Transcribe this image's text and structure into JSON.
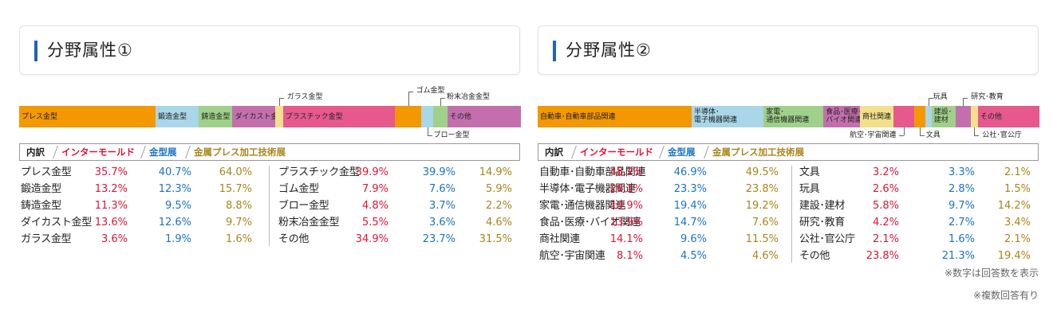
{
  "panel1": {
    "title": "分野属性①",
    "bar_segments": [
      {
        "label": "プレス金型",
        "share": 35.7,
        "color": "#f39800"
      },
      {
        "label": "鍛造金型",
        "share": 11.3,
        "color": "#a9d6e8"
      },
      {
        "label": "鋳造金型",
        "share": 8.8,
        "color": "#9fd18a"
      },
      {
        "label": "ダイカスト金型",
        "share": 11.1,
        "color": "#c36fae"
      },
      {
        "label": "ガラス金型",
        "share": 2.1,
        "color": "#f2e08a"
      },
      {
        "label": "プラスチック金型",
        "share": 29.3,
        "color": "#e7588f"
      },
      {
        "label": "ゴム金型",
        "share": 6.8,
        "color": "#f39800"
      },
      {
        "label": "ブロー金型",
        "share": 3.2,
        "color": "#a9d6e8"
      },
      {
        "label": "粉末冶金金型",
        "share": 3.7,
        "color": "#9fd18a"
      },
      {
        "label": "その他",
        "share": 19.0,
        "color": "#c36fae"
      }
    ],
    "header": {
      "k": "内訳",
      "i": "インターモールド",
      "m": "金型展",
      "p": "金属プレス加工技術展"
    },
    "rows_left": [
      {
        "name": "プレス金型",
        "i": "35.7%",
        "m": "40.7%",
        "p": "64.0%"
      },
      {
        "name": "鍛造金型",
        "i": "13.2%",
        "m": "12.3%",
        "p": "15.7%"
      },
      {
        "name": "鋳造金型",
        "i": "11.3%",
        "m": "9.5%",
        "p": "8.8%"
      },
      {
        "name": "ダイカスト金型",
        "i": "13.6%",
        "m": "12.6%",
        "p": "9.7%"
      },
      {
        "name": "ガラス金型",
        "i": "3.6%",
        "m": "1.9%",
        "p": "1.6%"
      }
    ],
    "rows_right": [
      {
        "name": "プラスチック金型",
        "i": "39.9%",
        "m": "39.9%",
        "p": "14.9%"
      },
      {
        "name": "ゴム金型",
        "i": "7.9%",
        "m": "7.6%",
        "p": "5.9%"
      },
      {
        "name": "ブロー金型",
        "i": "4.8%",
        "m": "3.7%",
        "p": "2.2%"
      },
      {
        "name": "粉末冶金金型",
        "i": "5.5%",
        "m": "3.6%",
        "p": "4.6%"
      },
      {
        "name": "その他",
        "i": "34.9%",
        "m": "23.7%",
        "p": "31.5%"
      }
    ]
  },
  "panel2": {
    "title": "分野属性②",
    "bar_segments": [
      {
        "label": "自動車･自動車部品関連",
        "share": 34.2,
        "color": "#f39800"
      },
      {
        "label": "半導体･\n電子機器関連",
        "share": 16.0,
        "color": "#a9d6e8"
      },
      {
        "label": "家電･\n通信機器関連",
        "share": 13.3,
        "color": "#9fd18a"
      },
      {
        "label": "食品･医療･\nバイオ関連",
        "share": 8.1,
        "color": "#c36fae"
      },
      {
        "label": "商社関連",
        "share": 7.5,
        "color": "#f2e08a"
      },
      {
        "label": "航空･宇宙関連",
        "share": 4.5,
        "color": "#e7588f"
      },
      {
        "label": "文具",
        "share": 2.5,
        "color": "#f39800"
      },
      {
        "label": "玩具",
        "share": 1.4,
        "color": "#a9d6e8"
      },
      {
        "label": "建設･\n建材",
        "share": 5.3,
        "color": "#9fd18a"
      },
      {
        "label": "研究･教育",
        "share": 3.4,
        "color": "#c36fae"
      },
      {
        "label": "公社･官公庁",
        "share": 1.6,
        "color": "#f2e08a"
      },
      {
        "label": "その他",
        "share": 13.5,
        "color": "#e7588f"
      }
    ],
    "header": {
      "k": "内訳",
      "i": "インターモールド",
      "m": "金型展",
      "p": "金属プレス加工技術展"
    },
    "rows_left": [
      {
        "name": "自動車･自動車部品関連",
        "i": "48.2%",
        "m": "46.9%",
        "p": "49.5%"
      },
      {
        "name": "半導体･電子機器関連",
        "i": "26.1%",
        "m": "23.3%",
        "p": "23.8%"
      },
      {
        "name": "家電･通信機器関連",
        "i": "19.9%",
        "m": "19.4%",
        "p": "19.2%"
      },
      {
        "name": "食品･医療･バイオ関連",
        "i": "13.9%",
        "m": "14.7%",
        "p": "7.6%"
      },
      {
        "name": "商社関連",
        "i": "14.1%",
        "m": "9.6%",
        "p": "11.5%"
      },
      {
        "name": "航空･宇宙関連",
        "i": "8.1%",
        "m": "4.5%",
        "p": "4.6%"
      }
    ],
    "rows_right": [
      {
        "name": "文具",
        "i": "3.2%",
        "m": "3.3%",
        "p": "2.1%"
      },
      {
        "name": "玩具",
        "i": "2.6%",
        "m": "2.8%",
        "p": "1.5%"
      },
      {
        "name": "建設･建材",
        "i": "5.8%",
        "m": "9.7%",
        "p": "14.2%"
      },
      {
        "name": "研究･教育",
        "i": "4.2%",
        "m": "2.7%",
        "p": "3.4%"
      },
      {
        "name": "公社･官公庁",
        "i": "2.1%",
        "m": "1.6%",
        "p": "2.1%"
      },
      {
        "name": "その他",
        "i": "23.8%",
        "m": "21.3%",
        "p": "19.4%"
      }
    ],
    "notes": [
      "※数字は回答数を表示",
      "※複数回答有り"
    ]
  },
  "chart_data": [
    {
      "type": "table",
      "title": "分野属性①",
      "columns": [
        "内訳",
        "インターモールド",
        "金型展",
        "金属プレス加工技術展"
      ],
      "rows": [
        [
          "プレス金型",
          35.7,
          40.7,
          64.0
        ],
        [
          "鍛造金型",
          13.2,
          12.3,
          15.7
        ],
        [
          "鋳造金型",
          11.3,
          9.5,
          8.8
        ],
        [
          "ダイカスト金型",
          13.6,
          12.6,
          9.7
        ],
        [
          "ガラス金型",
          3.6,
          1.9,
          1.6
        ],
        [
          "プラスチック金型",
          39.9,
          39.9,
          14.9
        ],
        [
          "ゴム金型",
          7.9,
          7.6,
          5.9
        ],
        [
          "ブロー金型",
          4.8,
          3.7,
          2.2
        ],
        [
          "粉末冶金金型",
          5.5,
          3.6,
          4.6
        ],
        [
          "その他",
          34.9,
          23.7,
          31.5
        ]
      ]
    },
    {
      "type": "table",
      "title": "分野属性②",
      "columns": [
        "内訳",
        "インターモールド",
        "金型展",
        "金属プレス加工技術展"
      ],
      "rows": [
        [
          "自動車･自動車部品関連",
          48.2,
          46.9,
          49.5
        ],
        [
          "半導体･電子機器関連",
          26.1,
          23.3,
          23.8
        ],
        [
          "家電･通信機器関連",
          19.9,
          19.4,
          19.2
        ],
        [
          "食品･医療･バイオ関連",
          13.9,
          14.7,
          7.6
        ],
        [
          "商社関連",
          14.1,
          9.6,
          11.5
        ],
        [
          "航空･宇宙関連",
          8.1,
          4.5,
          4.6
        ],
        [
          "文具",
          3.2,
          3.3,
          2.1
        ],
        [
          "玩具",
          2.6,
          2.8,
          1.5
        ],
        [
          "建設･建材",
          5.8,
          9.7,
          14.2
        ],
        [
          "研究･教育",
          4.2,
          2.7,
          3.4
        ],
        [
          "公社･官公庁",
          2.1,
          1.6,
          2.1
        ],
        [
          "その他",
          23.8,
          21.3,
          19.4
        ]
      ]
    }
  ]
}
